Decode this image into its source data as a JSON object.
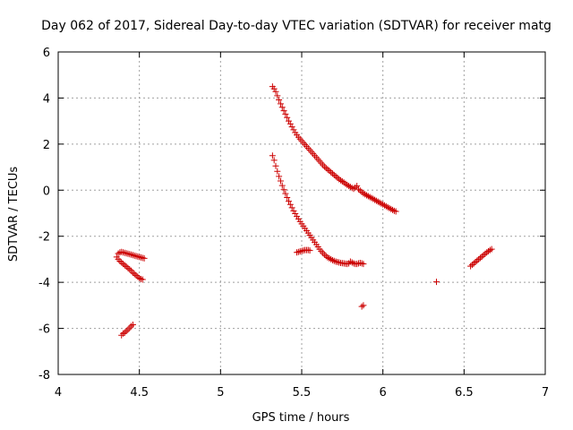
{
  "chart_data": {
    "type": "scatter",
    "title": "Day 062 of 2017, Sidereal Day-to-day VTEC variation (SDTVAR) for receiver matg",
    "xlabel": "GPS time / hours",
    "ylabel": "SDTVAR / TECUs",
    "xlim": [
      4,
      7
    ],
    "ylim": [
      -8,
      6
    ],
    "xticks": [
      "4",
      "4.5",
      "5",
      "5.5",
      "6",
      "6.5",
      "7"
    ],
    "yticks": [
      "-8",
      "-6",
      "-4",
      "-2",
      "0",
      "2",
      "4",
      "6"
    ],
    "grid": true,
    "marker": "+",
    "color": "#cc0000",
    "series": [
      {
        "values": [
          [
            4.36,
            -2.9
          ],
          [
            4.37,
            -2.75
          ],
          [
            4.38,
            -2.7
          ],
          [
            4.39,
            -2.68
          ],
          [
            4.4,
            -2.7
          ],
          [
            4.41,
            -2.72
          ],
          [
            4.42,
            -2.74
          ],
          [
            4.43,
            -2.76
          ],
          [
            4.44,
            -2.78
          ],
          [
            4.45,
            -2.8
          ],
          [
            4.46,
            -2.82
          ],
          [
            4.47,
            -2.84
          ],
          [
            4.48,
            -2.86
          ],
          [
            4.49,
            -2.88
          ],
          [
            4.5,
            -2.9
          ],
          [
            4.51,
            -2.92
          ],
          [
            4.52,
            -2.94
          ],
          [
            4.53,
            -2.96
          ],
          [
            4.37,
            -3.0
          ],
          [
            4.38,
            -3.08
          ],
          [
            4.39,
            -3.14
          ],
          [
            4.4,
            -3.2
          ],
          [
            4.41,
            -3.26
          ],
          [
            4.42,
            -3.32
          ],
          [
            4.43,
            -3.38
          ],
          [
            4.44,
            -3.44
          ],
          [
            4.45,
            -3.5
          ],
          [
            4.46,
            -3.58
          ],
          [
            4.47,
            -3.64
          ],
          [
            4.48,
            -3.7
          ],
          [
            4.49,
            -3.76
          ],
          [
            4.5,
            -3.82
          ],
          [
            4.51,
            -3.86
          ],
          [
            4.52,
            -3.88
          ],
          [
            4.39,
            -6.3
          ],
          [
            4.4,
            -6.22
          ],
          [
            4.41,
            -6.18
          ],
          [
            4.42,
            -6.12
          ],
          [
            4.43,
            -6.05
          ],
          [
            4.44,
            -5.98
          ],
          [
            4.45,
            -5.9
          ],
          [
            4.46,
            -5.84
          ],
          [
            5.32,
            4.5
          ],
          [
            5.33,
            4.4
          ],
          [
            5.34,
            4.28
          ],
          [
            5.35,
            4.1
          ],
          [
            5.36,
            3.92
          ],
          [
            5.37,
            3.75
          ],
          [
            5.38,
            3.6
          ],
          [
            5.39,
            3.45
          ],
          [
            5.4,
            3.3
          ],
          [
            5.41,
            3.15
          ],
          [
            5.42,
            3.0
          ],
          [
            5.43,
            2.88
          ],
          [
            5.44,
            2.75
          ],
          [
            5.45,
            2.62
          ],
          [
            5.46,
            2.5
          ],
          [
            5.47,
            2.4
          ],
          [
            5.48,
            2.3
          ],
          [
            5.49,
            2.22
          ],
          [
            5.5,
            2.14
          ],
          [
            5.51,
            2.06
          ],
          [
            5.52,
            1.98
          ],
          [
            5.53,
            1.9
          ],
          [
            5.54,
            1.82
          ],
          [
            5.55,
            1.74
          ],
          [
            5.56,
            1.66
          ],
          [
            5.57,
            1.58
          ],
          [
            5.58,
            1.5
          ],
          [
            5.59,
            1.42
          ],
          [
            5.6,
            1.34
          ],
          [
            5.61,
            1.26
          ],
          [
            5.62,
            1.18
          ],
          [
            5.63,
            1.1
          ],
          [
            5.64,
            1.02
          ],
          [
            5.65,
            0.96
          ],
          [
            5.66,
            0.9
          ],
          [
            5.67,
            0.84
          ],
          [
            5.68,
            0.78
          ],
          [
            5.69,
            0.72
          ],
          [
            5.7,
            0.66
          ],
          [
            5.71,
            0.6
          ],
          [
            5.72,
            0.54
          ],
          [
            5.73,
            0.48
          ],
          [
            5.74,
            0.43
          ],
          [
            5.75,
            0.38
          ],
          [
            5.76,
            0.33
          ],
          [
            5.77,
            0.28
          ],
          [
            5.78,
            0.23
          ],
          [
            5.79,
            0.18
          ],
          [
            5.8,
            0.14
          ],
          [
            5.81,
            0.1
          ],
          [
            5.82,
            0.06
          ],
          [
            5.83,
            0.12
          ],
          [
            5.84,
            0.18
          ],
          [
            5.85,
            0.04
          ],
          [
            5.86,
            -0.02
          ],
          [
            5.87,
            -0.08
          ],
          [
            5.88,
            -0.14
          ],
          [
            5.89,
            -0.18
          ],
          [
            5.9,
            -0.22
          ],
          [
            5.91,
            -0.26
          ],
          [
            5.92,
            -0.3
          ],
          [
            5.93,
            -0.34
          ],
          [
            5.94,
            -0.38
          ],
          [
            5.95,
            -0.42
          ],
          [
            5.96,
            -0.46
          ],
          [
            5.97,
            -0.5
          ],
          [
            5.98,
            -0.54
          ],
          [
            5.99,
            -0.58
          ],
          [
            6.0,
            -0.62
          ],
          [
            6.01,
            -0.66
          ],
          [
            6.02,
            -0.7
          ],
          [
            6.03,
            -0.74
          ],
          [
            6.04,
            -0.78
          ],
          [
            6.05,
            -0.82
          ],
          [
            6.06,
            -0.86
          ],
          [
            6.07,
            -0.9
          ],
          [
            6.08,
            -0.92
          ],
          [
            5.32,
            1.5
          ],
          [
            5.33,
            1.3
          ],
          [
            5.34,
            1.05
          ],
          [
            5.35,
            0.82
          ],
          [
            5.36,
            0.6
          ],
          [
            5.37,
            0.4
          ],
          [
            5.38,
            0.2
          ],
          [
            5.39,
            0.02
          ],
          [
            5.4,
            -0.15
          ],
          [
            5.41,
            -0.32
          ],
          [
            5.42,
            -0.48
          ],
          [
            5.43,
            -0.62
          ],
          [
            5.44,
            -0.76
          ],
          [
            5.45,
            -0.9
          ],
          [
            5.46,
            -1.02
          ],
          [
            5.47,
            -1.14
          ],
          [
            5.48,
            -1.25
          ],
          [
            5.49,
            -1.36
          ],
          [
            5.5,
            -1.46
          ],
          [
            5.51,
            -1.56
          ],
          [
            5.52,
            -1.66
          ],
          [
            5.53,
            -1.76
          ],
          [
            5.54,
            -1.86
          ],
          [
            5.55,
            -1.96
          ],
          [
            5.56,
            -2.06
          ],
          [
            5.57,
            -2.16
          ],
          [
            5.58,
            -2.26
          ],
          [
            5.59,
            -2.36
          ],
          [
            5.6,
            -2.46
          ],
          [
            5.61,
            -2.56
          ],
          [
            5.62,
            -2.65
          ],
          [
            5.63,
            -2.72
          ],
          [
            5.64,
            -2.8
          ],
          [
            5.65,
            -2.86
          ],
          [
            5.66,
            -2.92
          ],
          [
            5.67,
            -2.96
          ],
          [
            5.68,
            -3.0
          ],
          [
            5.69,
            -3.04
          ],
          [
            5.7,
            -3.07
          ],
          [
            5.71,
            -3.1
          ],
          [
            5.72,
            -3.12
          ],
          [
            5.73,
            -3.14
          ],
          [
            5.74,
            -3.16
          ],
          [
            5.75,
            -3.17
          ],
          [
            5.76,
            -3.18
          ],
          [
            5.77,
            -3.19
          ],
          [
            5.78,
            -3.2
          ],
          [
            5.79,
            -3.18
          ],
          [
            5.8,
            -3.1
          ],
          [
            5.81,
            -3.14
          ],
          [
            5.82,
            -3.18
          ],
          [
            5.83,
            -3.2
          ],
          [
            5.84,
            -3.2
          ],
          [
            5.85,
            -3.18
          ],
          [
            5.86,
            -3.16
          ],
          [
            5.87,
            -3.18
          ],
          [
            5.88,
            -3.2
          ],
          [
            5.47,
            -2.7
          ],
          [
            5.48,
            -2.68
          ],
          [
            5.49,
            -2.66
          ],
          [
            5.5,
            -2.64
          ],
          [
            5.51,
            -2.62
          ],
          [
            5.52,
            -2.6
          ],
          [
            5.53,
            -2.6
          ],
          [
            5.54,
            -2.6
          ],
          [
            5.55,
            -2.62
          ],
          [
            5.87,
            -5.05
          ],
          [
            5.88,
            -5.0
          ],
          [
            6.33,
            -3.98
          ],
          [
            6.54,
            -3.3
          ],
          [
            6.55,
            -3.24
          ],
          [
            6.56,
            -3.18
          ],
          [
            6.57,
            -3.12
          ],
          [
            6.58,
            -3.06
          ],
          [
            6.59,
            -3.0
          ],
          [
            6.6,
            -2.94
          ],
          [
            6.61,
            -2.88
          ],
          [
            6.62,
            -2.82
          ],
          [
            6.63,
            -2.76
          ],
          [
            6.64,
            -2.7
          ],
          [
            6.65,
            -2.65
          ],
          [
            6.66,
            -2.6
          ],
          [
            6.67,
            -2.56
          ]
        ]
      }
    ]
  }
}
